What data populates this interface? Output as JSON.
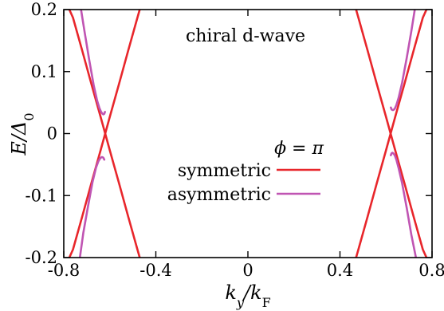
{
  "chart_data": {
    "type": "line",
    "title": "",
    "annotations": {
      "panel_label": "chiral d-wave",
      "legend_title": "ϕ = π"
    },
    "xlabel": "k_y/k_F",
    "ylabel": "E/Δ_0",
    "xlim": [
      -0.8,
      0.8
    ],
    "ylim": [
      -0.2,
      0.2
    ],
    "x_ticks": [
      -0.8,
      -0.4,
      0,
      0.4,
      0.8
    ],
    "x_tick_labels": [
      "-0.8",
      "-0.4",
      "0",
      "0.4",
      "0.8"
    ],
    "y_ticks": [
      -0.2,
      -0.1,
      0,
      0.1,
      0.2
    ],
    "y_tick_labels": [
      "-0.2",
      "-0.1",
      "0",
      "0.1",
      "0.2"
    ],
    "grid": false,
    "legend_position": "center-right",
    "series": [
      {
        "name": "symmetric",
        "color": "#e8262b",
        "lines": [
          {
            "x": [
              -0.8,
              -0.76,
              -0.72,
              -0.68,
              -0.64,
              -0.62,
              -0.6,
              -0.56,
              -0.52,
              -0.48,
              -0.47
            ],
            "y": [
              0.22,
              0.187,
              0.134,
              0.08,
              0.027,
              0.0,
              -0.027,
              -0.08,
              -0.134,
              -0.187,
              -0.2
            ]
          },
          {
            "x": [
              -0.47,
              -0.48,
              -0.52,
              -0.56,
              -0.6,
              -0.62,
              -0.64,
              -0.68,
              -0.72,
              -0.76,
              -0.8
            ],
            "y": [
              0.2,
              0.187,
              0.134,
              0.08,
              0.027,
              0.0,
              -0.027,
              -0.08,
              -0.134,
              -0.187,
              -0.22
            ]
          },
          {
            "x": [
              0.47,
              0.48,
              0.52,
              0.56,
              0.6,
              0.62,
              0.64,
              0.68,
              0.72,
              0.76,
              0.8
            ],
            "y": [
              0.2,
              0.187,
              0.134,
              0.08,
              0.027,
              0.0,
              -0.027,
              -0.08,
              -0.134,
              -0.187,
              -0.22
            ]
          },
          {
            "x": [
              0.47,
              0.48,
              0.52,
              0.56,
              0.6,
              0.62,
              0.64,
              0.68,
              0.72,
              0.76,
              0.8
            ],
            "y": [
              -0.2,
              -0.187,
              -0.134,
              -0.08,
              -0.027,
              0.0,
              0.027,
              0.08,
              0.134,
              0.187,
              0.22
            ]
          }
        ]
      },
      {
        "name": "asymmetric",
        "color": "#c055b3",
        "lines": [
          {
            "x": [
              -0.725,
              -0.71,
              -0.69,
              -0.67,
              -0.655,
              -0.645,
              -0.638,
              -0.632,
              -0.628,
              -0.624,
              -0.621
            ],
            "y": [
              0.2,
              0.165,
              0.12,
              0.078,
              0.053,
              0.041,
              0.035,
              0.032,
              0.031,
              0.032,
              0.035
            ]
          },
          {
            "x": [
              -0.73,
              -0.715,
              -0.695,
              -0.675,
              -0.66,
              -0.65,
              -0.642,
              -0.636,
              -0.632,
              -0.628,
              -0.624
            ],
            "y": [
              -0.2,
              -0.16,
              -0.118,
              -0.078,
              -0.055,
              -0.045,
              -0.04,
              -0.038,
              -0.038,
              -0.039,
              -0.042
            ]
          },
          {
            "x": [
              0.621,
              0.624,
              0.628,
              0.632,
              0.638,
              0.645,
              0.655,
              0.67,
              0.69,
              0.71,
              0.725
            ],
            "y": [
              0.042,
              0.039,
              0.038,
              0.038,
              0.04,
              0.046,
              0.058,
              0.082,
              0.122,
              0.165,
              0.2
            ]
          },
          {
            "x": [
              0.621,
              0.624,
              0.628,
              0.632,
              0.638,
              0.645,
              0.655,
              0.67,
              0.69,
              0.71,
              0.73
            ],
            "y": [
              -0.035,
              -0.032,
              -0.031,
              -0.032,
              -0.035,
              -0.042,
              -0.056,
              -0.08,
              -0.12,
              -0.163,
              -0.2
            ]
          }
        ]
      }
    ]
  }
}
